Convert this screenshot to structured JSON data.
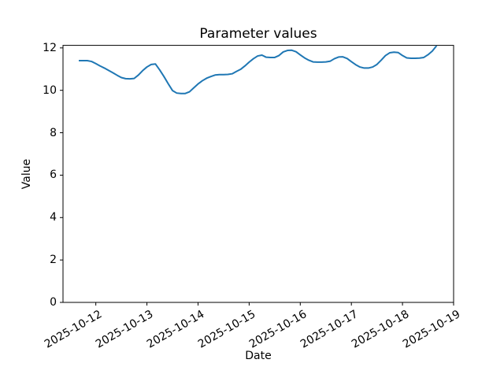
{
  "figure": {
    "background_color": "#ffffff",
    "text_color": "#000000"
  },
  "chart_data": {
    "type": "line",
    "title": "Parameter values",
    "xlabel": "Date",
    "ylabel": "Value",
    "grid": false,
    "legend": null,
    "line_color": "#1f77b4",
    "axis_color": "#000000",
    "xlim_days": [
      -0.642,
      7.0
    ],
    "ylim": [
      0,
      12.12
    ],
    "y_ticks": [
      0,
      2,
      4,
      6,
      8,
      10,
      12
    ],
    "x_ticks": [
      {
        "day": 0,
        "label": "2025-10-12"
      },
      {
        "day": 1,
        "label": "2025-10-13"
      },
      {
        "day": 2,
        "label": "2025-10-14"
      },
      {
        "day": 3,
        "label": "2025-10-15"
      },
      {
        "day": 4,
        "label": "2025-10-16"
      },
      {
        "day": 5,
        "label": "2025-10-17"
      },
      {
        "day": 6,
        "label": "2025-10-18"
      },
      {
        "day": 7,
        "label": "2025-10-19"
      }
    ],
    "series": [
      {
        "name": "Parameter values",
        "x_unit": "days since 2025-10-12 00:00",
        "points": [
          [
            -0.333,
            11.4
          ],
          [
            -0.25,
            11.4
          ],
          [
            -0.167,
            11.4
          ],
          [
            -0.083,
            11.36
          ],
          [
            0.0,
            11.26
          ],
          [
            0.083,
            11.15
          ],
          [
            0.167,
            11.05
          ],
          [
            0.25,
            10.94
          ],
          [
            0.333,
            10.83
          ],
          [
            0.417,
            10.71
          ],
          [
            0.5,
            10.6
          ],
          [
            0.583,
            10.55
          ],
          [
            0.667,
            10.54
          ],
          [
            0.75,
            10.56
          ],
          [
            0.833,
            10.72
          ],
          [
            0.917,
            10.93
          ],
          [
            1.0,
            11.1
          ],
          [
            1.083,
            11.22
          ],
          [
            1.167,
            11.24
          ],
          [
            1.25,
            10.96
          ],
          [
            1.333,
            10.65
          ],
          [
            1.417,
            10.31
          ],
          [
            1.5,
            9.99
          ],
          [
            1.583,
            9.87
          ],
          [
            1.667,
            9.85
          ],
          [
            1.75,
            9.85
          ],
          [
            1.833,
            9.93
          ],
          [
            1.917,
            10.12
          ],
          [
            2.0,
            10.3
          ],
          [
            2.083,
            10.45
          ],
          [
            2.167,
            10.57
          ],
          [
            2.25,
            10.65
          ],
          [
            2.333,
            10.72
          ],
          [
            2.417,
            10.74
          ],
          [
            2.5,
            10.74
          ],
          [
            2.583,
            10.75
          ],
          [
            2.667,
            10.78
          ],
          [
            2.75,
            10.89
          ],
          [
            2.833,
            10.99
          ],
          [
            2.917,
            11.15
          ],
          [
            3.0,
            11.33
          ],
          [
            3.083,
            11.49
          ],
          [
            3.167,
            11.62
          ],
          [
            3.25,
            11.66
          ],
          [
            3.333,
            11.56
          ],
          [
            3.417,
            11.55
          ],
          [
            3.5,
            11.55
          ],
          [
            3.583,
            11.64
          ],
          [
            3.667,
            11.81
          ],
          [
            3.75,
            11.88
          ],
          [
            3.833,
            11.89
          ],
          [
            3.917,
            11.82
          ],
          [
            4.0,
            11.67
          ],
          [
            4.083,
            11.53
          ],
          [
            4.167,
            11.42
          ],
          [
            4.25,
            11.34
          ],
          [
            4.333,
            11.33
          ],
          [
            4.417,
            11.33
          ],
          [
            4.5,
            11.34
          ],
          [
            4.583,
            11.37
          ],
          [
            4.667,
            11.49
          ],
          [
            4.75,
            11.57
          ],
          [
            4.833,
            11.58
          ],
          [
            4.917,
            11.5
          ],
          [
            5.0,
            11.35
          ],
          [
            5.083,
            11.21
          ],
          [
            5.167,
            11.1
          ],
          [
            5.25,
            11.05
          ],
          [
            5.333,
            11.05
          ],
          [
            5.417,
            11.1
          ],
          [
            5.5,
            11.22
          ],
          [
            5.583,
            11.42
          ],
          [
            5.667,
            11.64
          ],
          [
            5.75,
            11.77
          ],
          [
            5.833,
            11.8
          ],
          [
            5.917,
            11.78
          ],
          [
            6.0,
            11.64
          ],
          [
            6.083,
            11.53
          ],
          [
            6.167,
            11.51
          ],
          [
            6.25,
            11.51
          ],
          [
            6.333,
            11.52
          ],
          [
            6.417,
            11.55
          ],
          [
            6.5,
            11.68
          ],
          [
            6.583,
            11.85
          ],
          [
            6.667,
            12.1
          ]
        ]
      }
    ]
  }
}
